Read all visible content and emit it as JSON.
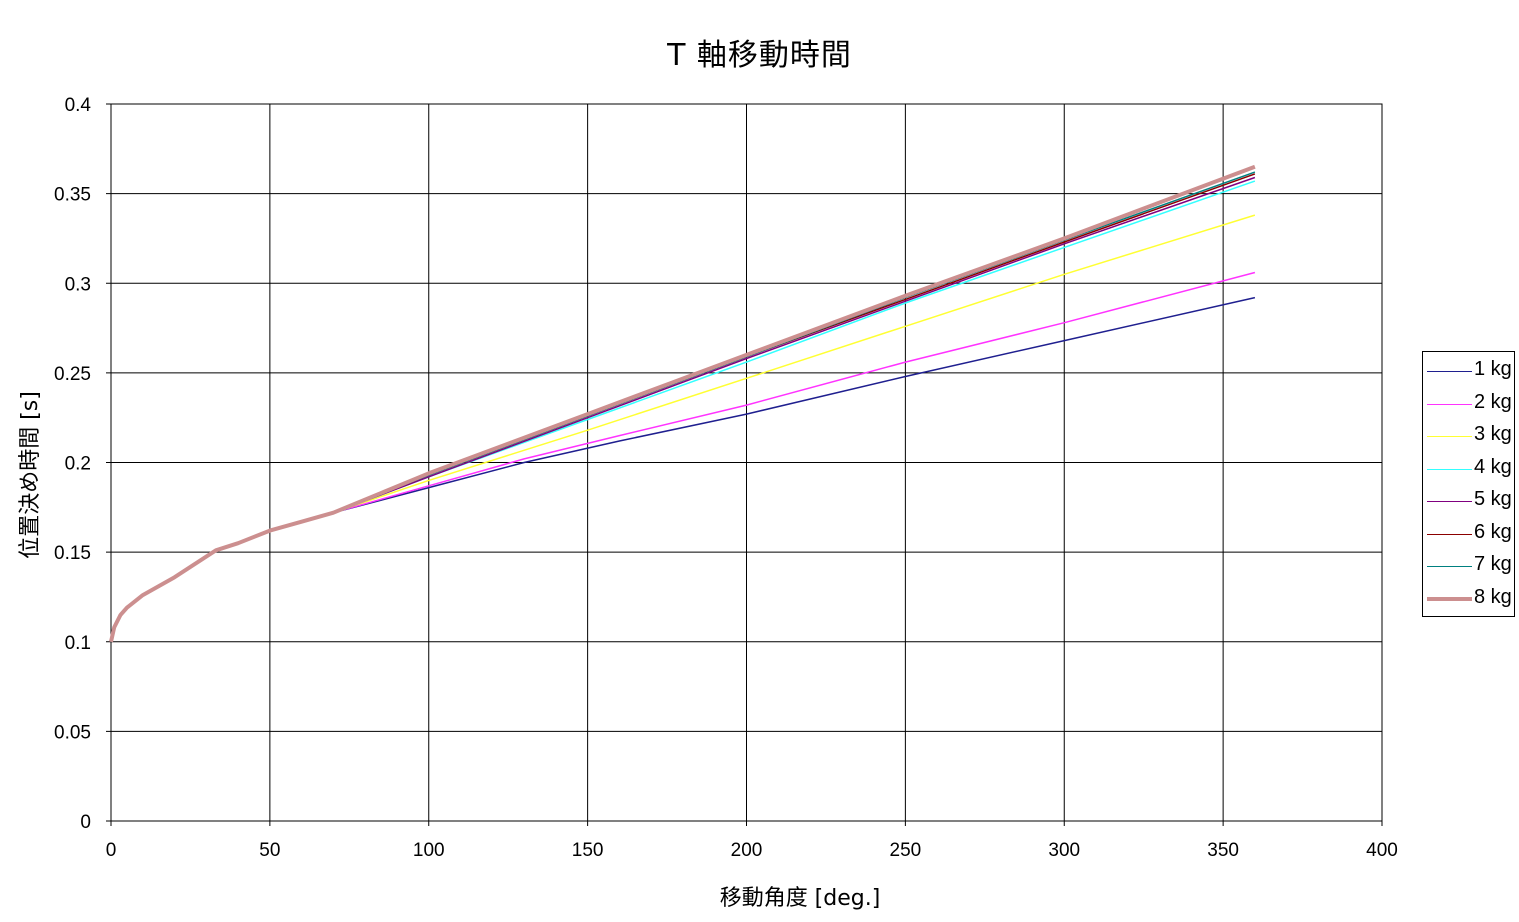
{
  "chart_data": {
    "type": "line",
    "title": "T 軸移動時間",
    "xlabel": "移動角度 [deg.]",
    "ylabel": "位置決め時間 [s]",
    "xlim": [
      0,
      400
    ],
    "ylim": [
      0,
      0.4
    ],
    "xticks": [
      "0",
      "50",
      "100",
      "150",
      "200",
      "250",
      "300",
      "350",
      "400"
    ],
    "yticks": [
      "0",
      "0.05",
      "0.1",
      "0.15",
      "0.2",
      "0.25",
      "0.3",
      "0.35",
      "0.4"
    ],
    "grid": true,
    "legend_position": "right",
    "shared_curve": {
      "x": [
        0,
        1,
        3,
        5,
        10,
        20,
        33,
        40,
        50,
        60,
        70
      ],
      "y": [
        0.1,
        0.108,
        0.115,
        0.119,
        0.126,
        0.136,
        0.151,
        0.155,
        0.162,
        0.167,
        0.172
      ]
    },
    "series": [
      {
        "name": "1 kg",
        "color": "#1f1f8f",
        "width": 1.5,
        "x": [
          70,
          100,
          130,
          160,
          200,
          250,
          300,
          360
        ],
        "y": [
          0.172,
          0.186,
          0.2,
          0.212,
          0.227,
          0.248,
          0.268,
          0.292
        ]
      },
      {
        "name": "2 kg",
        "color": "#ff33ff",
        "width": 1.5,
        "x": [
          70,
          100,
          130,
          160,
          200,
          250,
          300,
          360
        ],
        "y": [
          0.172,
          0.187,
          0.202,
          0.215,
          0.232,
          0.256,
          0.278,
          0.306
        ]
      },
      {
        "name": "3 kg",
        "color": "#ffff33",
        "width": 1.5,
        "x": [
          70,
          100,
          150,
          200,
          250,
          300,
          360
        ],
        "y": [
          0.172,
          0.19,
          0.218,
          0.247,
          0.276,
          0.305,
          0.338
        ]
      },
      {
        "name": "4 kg",
        "color": "#33ffff",
        "width": 1.5,
        "x": [
          70,
          100,
          150,
          200,
          250,
          300,
          360
        ],
        "y": [
          0.172,
          0.192,
          0.224,
          0.256,
          0.289,
          0.32,
          0.357
        ]
      },
      {
        "name": "5 kg",
        "color": "#800080",
        "width": 1.5,
        "x": [
          70,
          100,
          150,
          200,
          250,
          300,
          360
        ],
        "y": [
          0.172,
          0.192,
          0.225,
          0.258,
          0.29,
          0.322,
          0.359
        ]
      },
      {
        "name": "6 kg",
        "color": "#8b0000",
        "width": 1.5,
        "x": [
          70,
          100,
          150,
          200,
          250,
          300,
          360
        ],
        "y": [
          0.172,
          0.193,
          0.226,
          0.259,
          0.291,
          0.323,
          0.361
        ]
      },
      {
        "name": "7 kg",
        "color": "#008080",
        "width": 1.5,
        "x": [
          70,
          100,
          150,
          200,
          250,
          300,
          360
        ],
        "y": [
          0.172,
          0.193,
          0.226,
          0.259,
          0.292,
          0.324,
          0.362
        ]
      },
      {
        "name": "8 kg",
        "color": "#cc8f8f",
        "width": 4,
        "x": [
          70,
          100,
          150,
          200,
          250,
          300,
          360
        ],
        "y": [
          0.172,
          0.194,
          0.227,
          0.26,
          0.293,
          0.325,
          0.365
        ]
      }
    ]
  }
}
